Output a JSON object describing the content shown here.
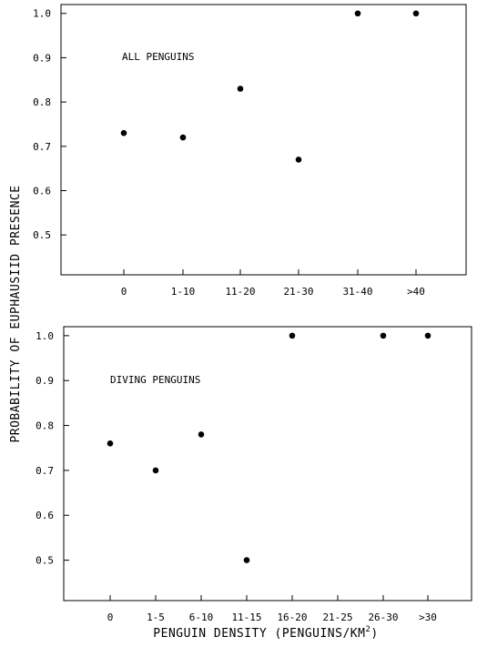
{
  "ylabel": "PROBABILITY OF EUPHAUSIID PRESENCE",
  "xlabel_main": "PENGUIN DENSITY  (PENGUINS/KM",
  "xlabel_sup": "2",
  "xlabel_close": ")",
  "chart_data": [
    {
      "type": "scatter",
      "annotation": "ALL PENGUINS",
      "categories": [
        "0",
        "1-10",
        "11-20",
        "21-30",
        "31-40",
        ">40"
      ],
      "x": [
        "0",
        "1-10",
        "11-20",
        "21-30",
        "31-40",
        ">40"
      ],
      "y": [
        0.73,
        0.72,
        0.83,
        0.67,
        1.0,
        1.0
      ],
      "yticks": [
        "0.5",
        "0.6",
        "0.7",
        "0.8",
        "0.9",
        "1.0"
      ],
      "ylim": [
        0.41,
        1.02
      ],
      "grid": false,
      "color": "#000000"
    },
    {
      "type": "scatter",
      "annotation": "DIVING PENGUINS",
      "categories": [
        "0",
        "1-5",
        "6-10",
        "11-15",
        "16-20",
        "21-25",
        "26-30",
        ">30"
      ],
      "x": [
        "0",
        "1-5",
        "6-10",
        "11-15",
        "16-20",
        "21-25",
        "26-30",
        ">30"
      ],
      "y": [
        0.76,
        0.7,
        0.78,
        0.5,
        1.0,
        null,
        1.0,
        1.0
      ],
      "yticks": [
        "0.5",
        "0.6",
        "0.7",
        "0.8",
        "0.9",
        "1.0"
      ],
      "ylim": [
        0.41,
        1.02
      ],
      "grid": false,
      "color": "#000000"
    }
  ]
}
